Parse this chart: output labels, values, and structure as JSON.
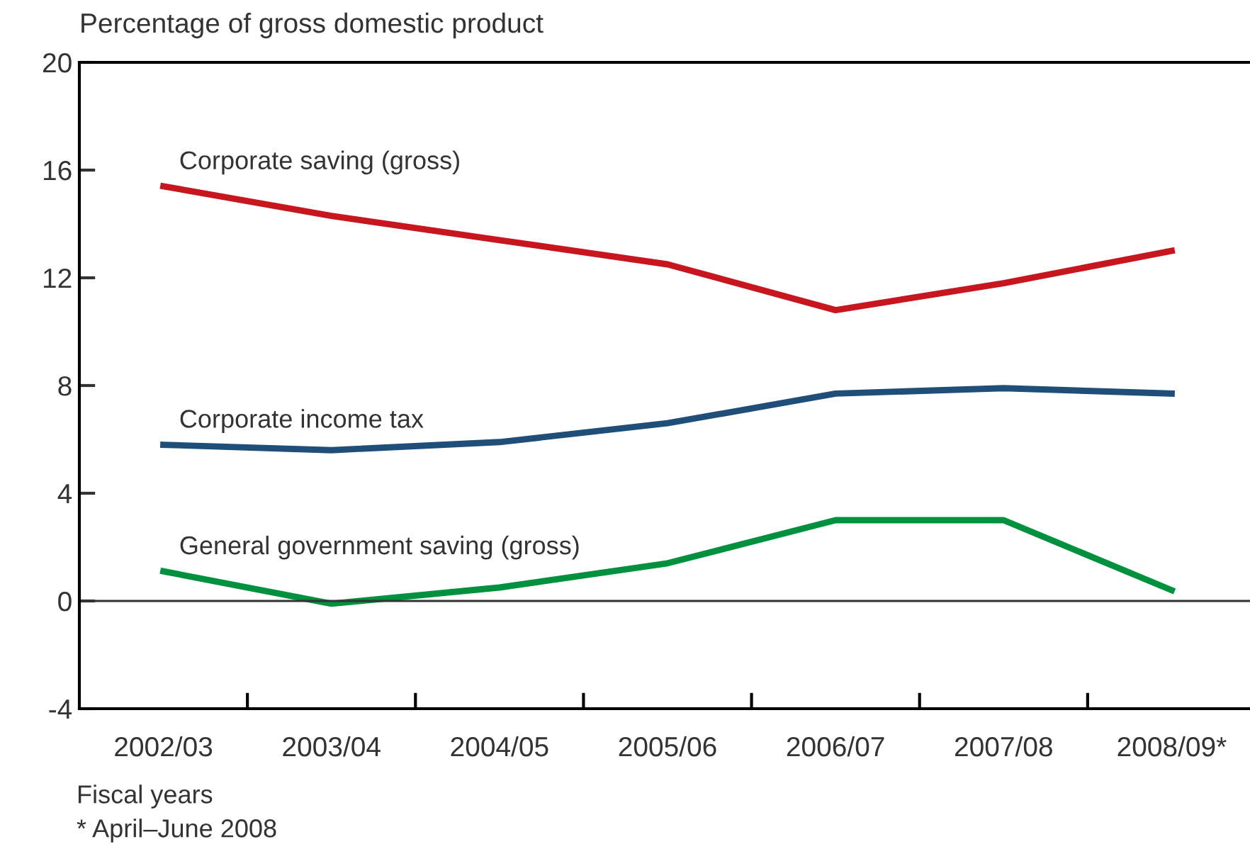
{
  "chart_data": {
    "type": "line",
    "ylabel": "Percentage of gross domestic product",
    "xlabel": "Fiscal years",
    "categories": [
      "2002/03",
      "2003/04",
      "2004/05",
      "2005/06",
      "2006/07",
      "2007/08",
      "2008/09*"
    ],
    "series": [
      {
        "name": "Corporate saving (gross)",
        "color": "#c8161e",
        "values": [
          15.4,
          14.3,
          13.4,
          12.5,
          10.8,
          11.8,
          13.0
        ]
      },
      {
        "name": "Corporate income tax",
        "color": "#1f4e79",
        "values": [
          5.8,
          5.6,
          5.9,
          6.6,
          7.7,
          7.9,
          7.7
        ]
      },
      {
        "name": "General government saving (gross)",
        "color": "#00913f",
        "values": [
          1.1,
          -0.1,
          0.5,
          1.4,
          3.0,
          3.0,
          0.4
        ]
      }
    ],
    "ylim": [
      -4,
      20
    ],
    "yticks": [
      -4,
      0,
      4,
      8,
      12,
      16,
      20
    ],
    "ref_lines": [
      {
        "axis": "y",
        "value": 0,
        "color": "#333333"
      }
    ],
    "annotations": [
      "* April–June 2008"
    ],
    "grid": false,
    "legend": false,
    "marker": "none",
    "line_style": "solid"
  }
}
